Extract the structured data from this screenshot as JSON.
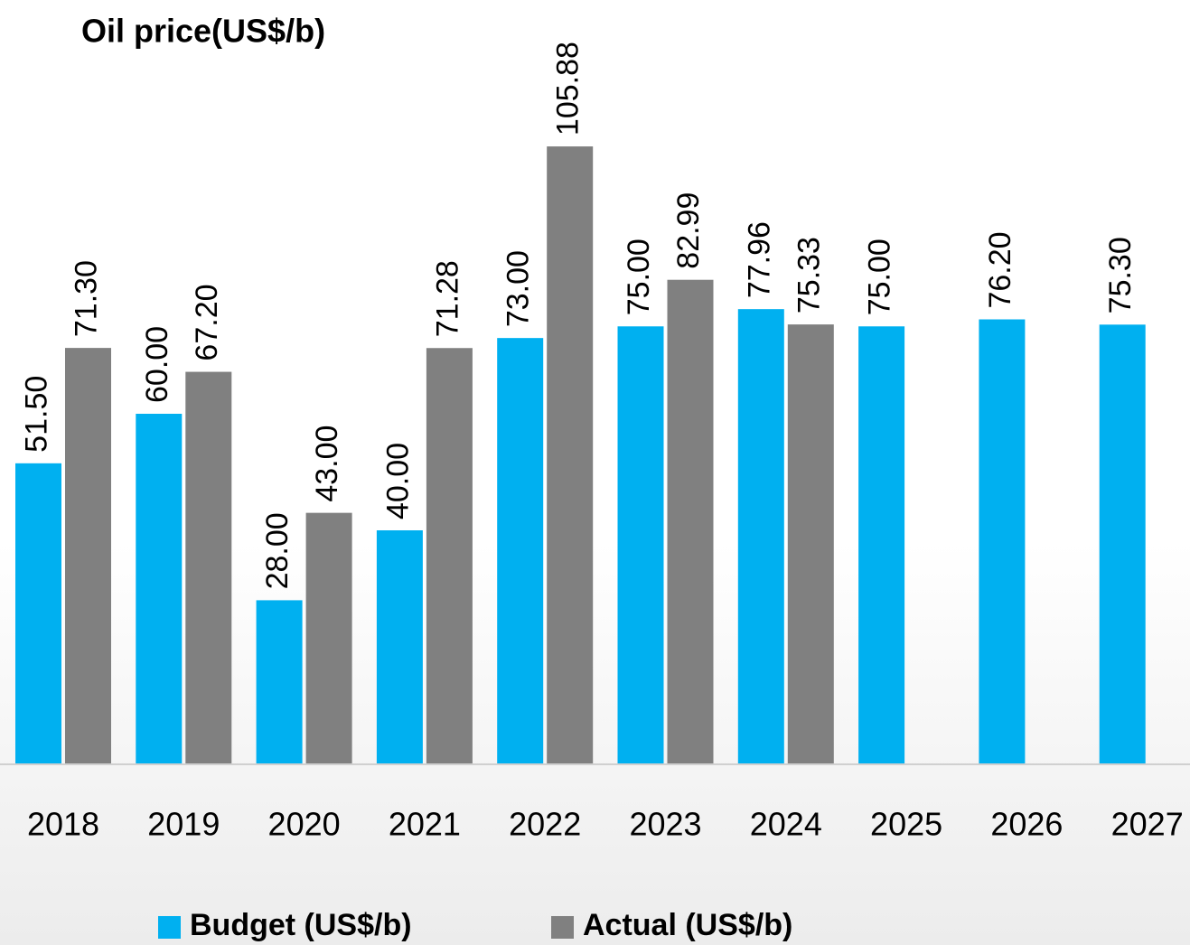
{
  "chart_data": {
    "type": "bar",
    "title": "Oil price(US$/b)",
    "categories": [
      "2018",
      "2019",
      "2020",
      "2021",
      "2022",
      "2023",
      "2024",
      "2025",
      "2026",
      "2027"
    ],
    "series": [
      {
        "name": "Budget (US$/b)",
        "color": "#00b0f0",
        "values": [
          51.5,
          60,
          28,
          40,
          73,
          75,
          77.96,
          75,
          76.2,
          75.3
        ],
        "value_labels": [
          "51.50",
          "60.00",
          "28.00",
          "40.00",
          "73.00",
          "75.00",
          "77.96",
          "75.00",
          "76.20",
          "75.30"
        ]
      },
      {
        "name": "Actual (US$/b)",
        "color": "#808080",
        "values": [
          71.3,
          67.2,
          43,
          71.28,
          105.88,
          82.99,
          75.33,
          null,
          null,
          null
        ],
        "value_labels": [
          "71.30",
          "67.20",
          "43.00",
          "71.28",
          "105.88",
          "82.99",
          "75.33",
          null,
          null,
          null
        ]
      }
    ]
  }
}
